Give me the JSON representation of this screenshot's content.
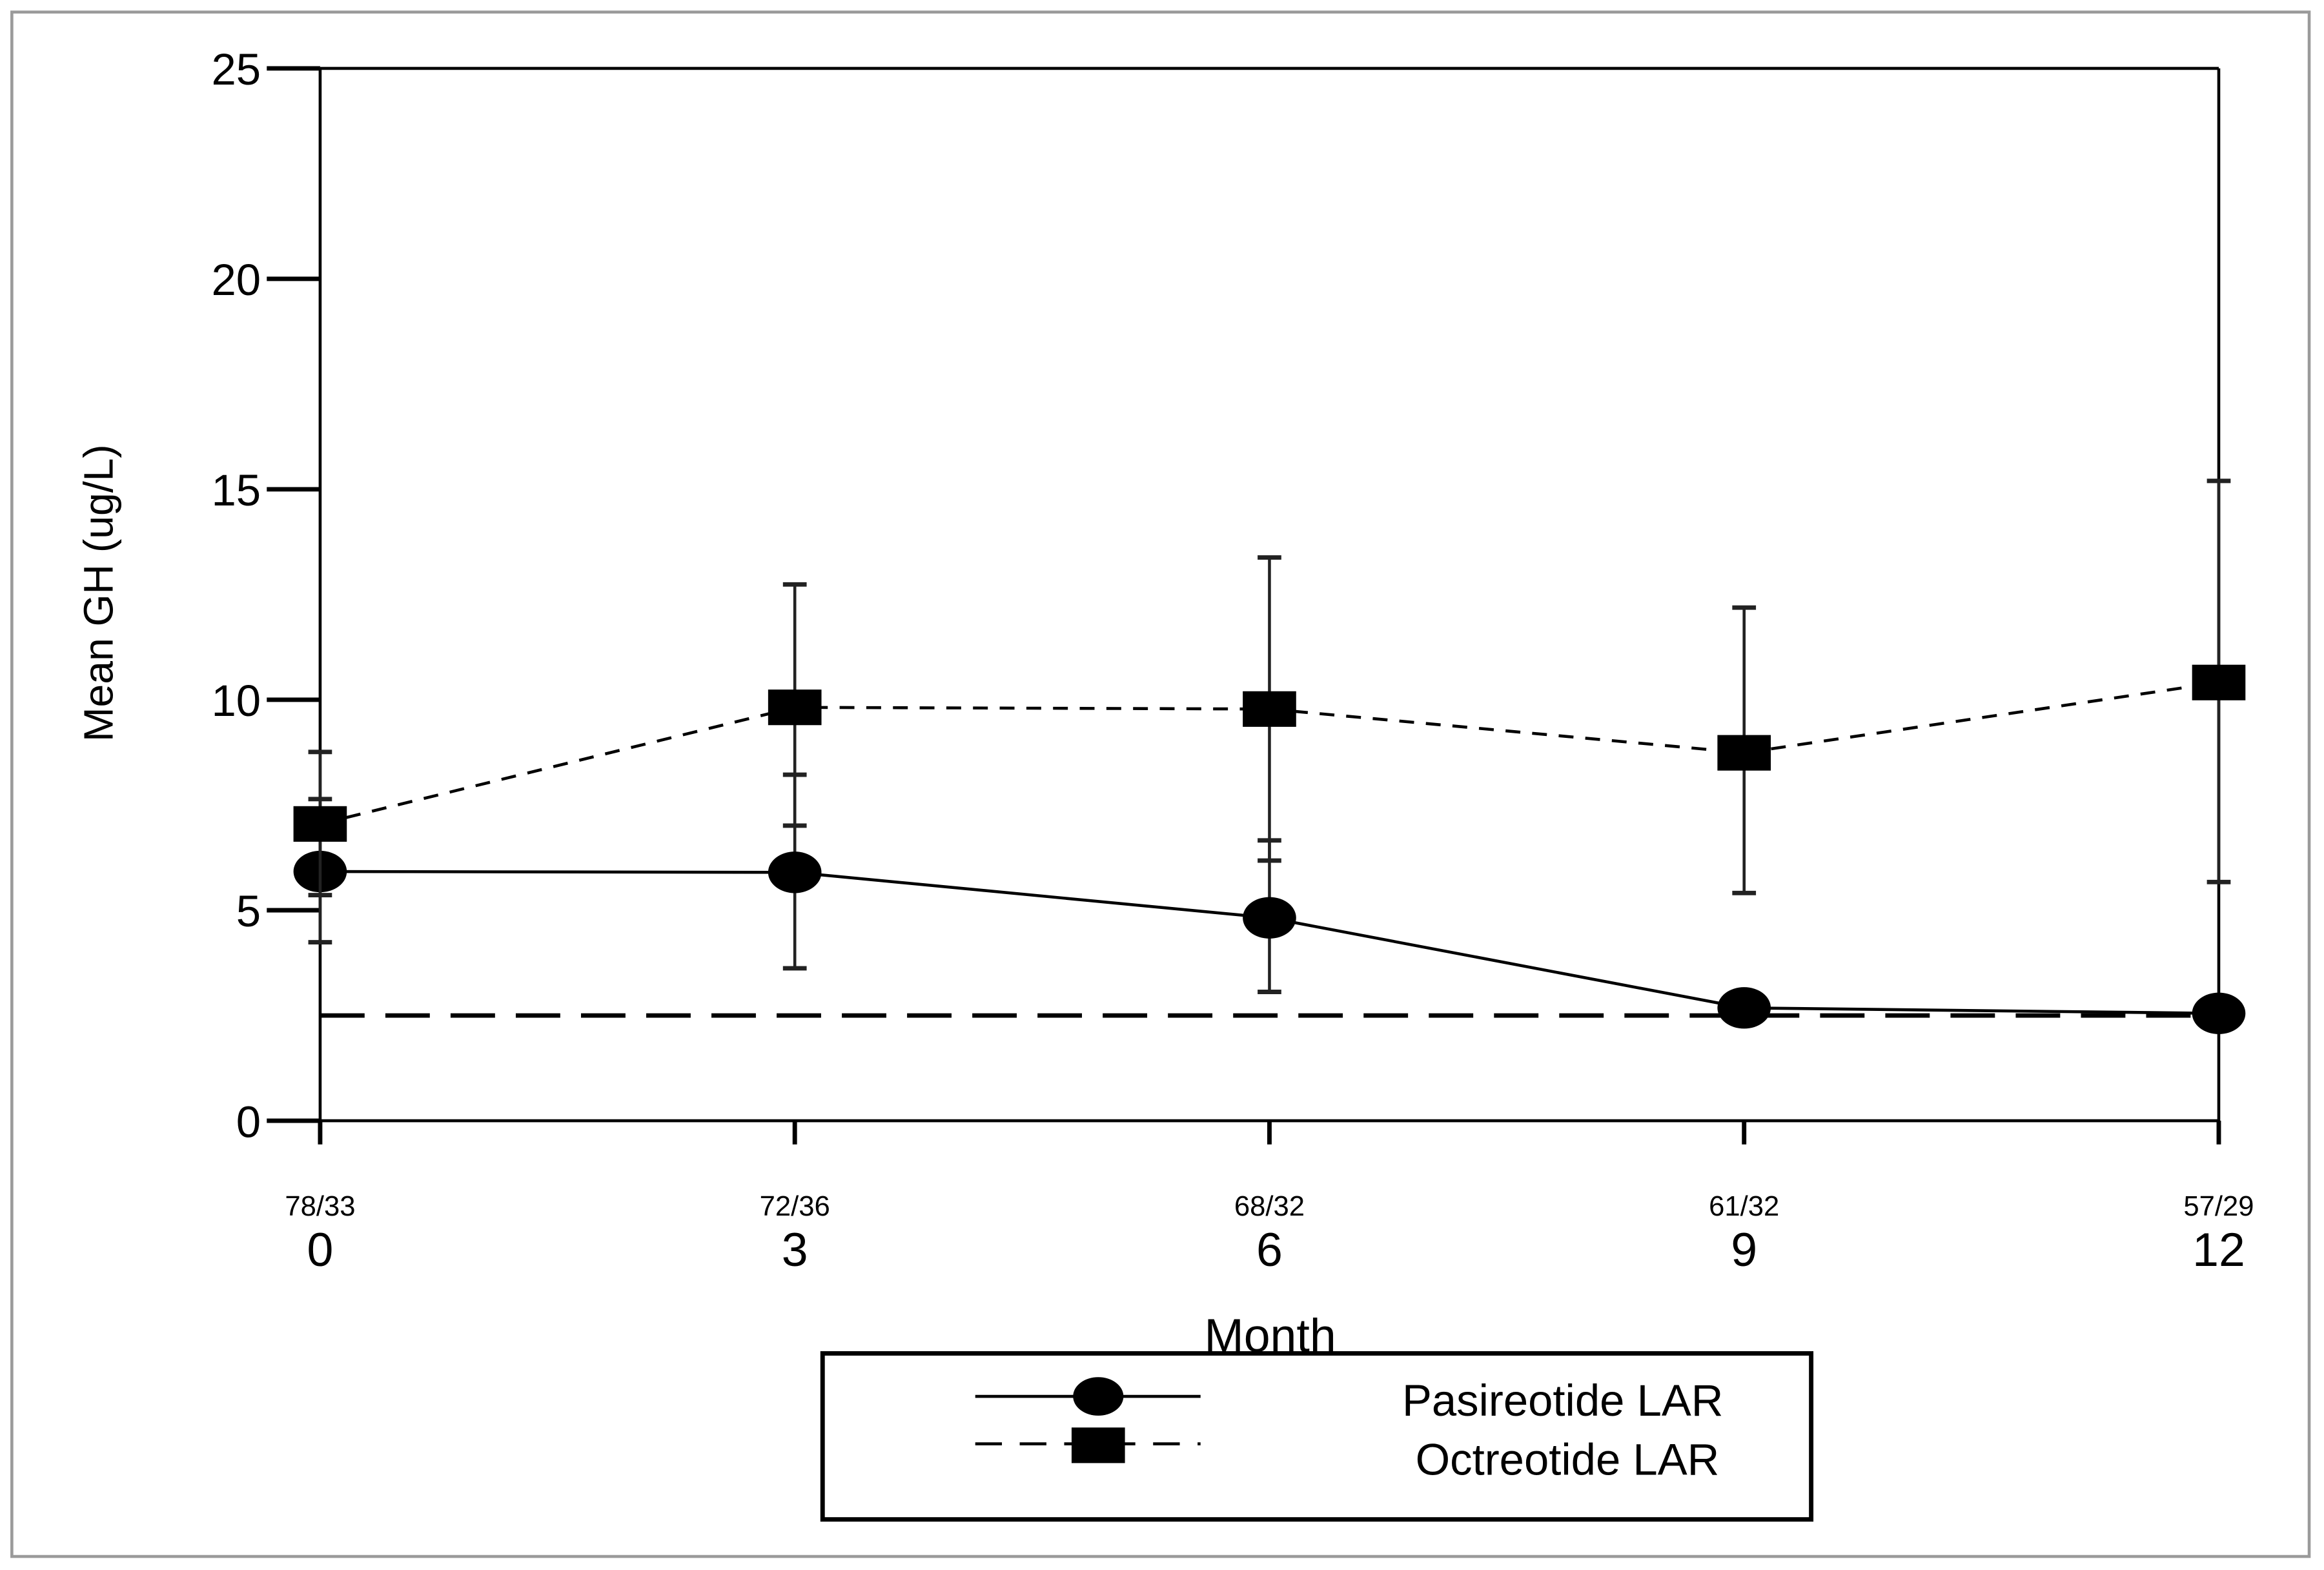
{
  "chart_data": {
    "type": "line",
    "title": "",
    "xlabel": "Month",
    "ylabel": "Mean GH (ug/L)",
    "x": [
      0,
      3,
      6,
      9,
      12
    ],
    "x_tick_labels": [
      "0",
      "3",
      "6",
      "9",
      "12"
    ],
    "n_labels": [
      "78/33",
      "72/36",
      "68/32",
      "61/32",
      "57/29"
    ],
    "ylim": [
      0,
      25
    ],
    "y_ticks": [
      0,
      5,
      10,
      15,
      20,
      25
    ],
    "grid": false,
    "legend_position": "bottom",
    "reference_line": {
      "y": 2.5,
      "style": "long-dash"
    },
    "series": [
      {
        "name": "Pasireotide LAR",
        "marker": "circle",
        "line_style": "solid",
        "values": [
          5.92,
          5.9,
          4.82,
          2.68,
          2.55
        ],
        "error_low": [
          4.24,
          3.62,
          3.06,
          2.4,
          2.4
        ],
        "error_high": [
          7.64,
          8.22,
          6.66,
          3.0,
          2.7
        ]
      },
      {
        "name": "Octreotide LAR",
        "marker": "square",
        "line_style": "dashed",
        "values": [
          7.05,
          9.82,
          9.78,
          8.74,
          10.41
        ],
        "error_low": [
          5.36,
          7.01,
          6.18,
          5.41,
          5.67
        ],
        "error_high": [
          8.76,
          12.74,
          13.38,
          12.19,
          15.2
        ]
      }
    ],
    "colors": {
      "axis": "#000000",
      "frame": "#9a9a9a",
      "series": "#000000"
    }
  }
}
